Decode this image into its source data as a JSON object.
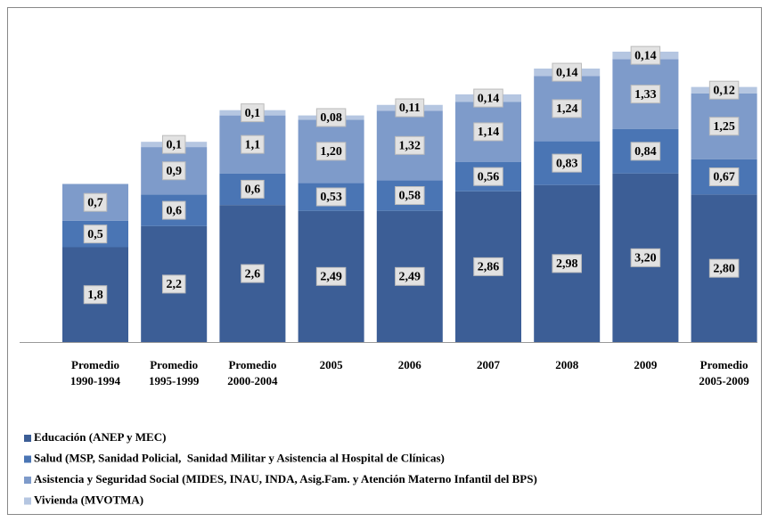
{
  "chart_data": {
    "type": "stacked_bar",
    "categories": [
      "Promedio\n1990-1994",
      "Promedio\n1995-1999",
      "Promedio\n2000-2004",
      "2005",
      "2006",
      "2007",
      "2008",
      "2009",
      "Promedio\n2005-2009"
    ],
    "series": [
      {
        "name": "Educación (ANEP y MEC)",
        "color": "#3c5e96",
        "values": [
          1.8,
          2.2,
          2.6,
          2.49,
          2.49,
          2.86,
          2.98,
          3.2,
          2.8
        ],
        "value_labels": [
          "1,8",
          "2,2",
          "2,6",
          "2,49",
          "2,49",
          "2,86",
          "2,98",
          "3,20",
          "2,80"
        ]
      },
      {
        "name": "Salud (MSP, Sanidad Policial,  Sanidad Militar y Asistencia al Hospital de Clínicas)",
        "color": "#4a75b4",
        "values": [
          0.5,
          0.6,
          0.6,
          0.53,
          0.58,
          0.56,
          0.83,
          0.84,
          0.67
        ],
        "value_labels": [
          "0,5",
          "0,6",
          "0,6",
          "0,53",
          "0,58",
          "0,56",
          "0,83",
          "0,84",
          "0,67"
        ]
      },
      {
        "name": "Asistencia y Seguridad Social (MIDES, INAU, INDA, Asig.Fam. y Atención Materno Infantil del BPS)",
        "color": "#7e9bca",
        "values": [
          0.7,
          0.9,
          1.1,
          1.2,
          1.32,
          1.14,
          1.24,
          1.33,
          1.25
        ],
        "value_labels": [
          "0,7",
          "0,9",
          "1,1",
          "1,20",
          "1,32",
          "1,14",
          "1,24",
          "1,33",
          "1,25"
        ]
      },
      {
        "name": "Vivienda (MVOTMA)",
        "color": "#b5c6e1",
        "values": [
          null,
          0.1,
          0.1,
          0.08,
          0.11,
          0.14,
          0.14,
          0.14,
          0.12
        ],
        "value_labels": [
          null,
          "0,1",
          "0,1",
          "0,08",
          "0,11",
          "0,14",
          "0,14",
          "0,14",
          "0,12"
        ]
      }
    ]
  }
}
